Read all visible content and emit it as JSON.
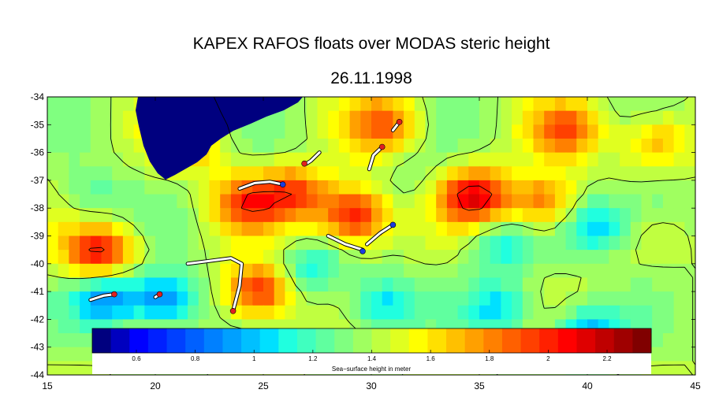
{
  "chart_data": {
    "type": "heatmap",
    "title": "KAPEX RAFOS floats over MODAS steric height",
    "subtitle": "26.11.1998",
    "xlim": [
      15,
      45
    ],
    "ylim": [
      -44,
      -34
    ],
    "x_ticks": [
      "15",
      "20",
      "25",
      "30",
      "35",
      "40",
      "45"
    ],
    "y_ticks": [
      "-34",
      "-35",
      "-36",
      "-37",
      "-38",
      "-39",
      "-40",
      "-41",
      "-42",
      "-43",
      "-44"
    ],
    "colorbar": {
      "label": "Sea−surface height in meter",
      "range": [
        0.45,
        2.35
      ],
      "ticks": [
        "0.6",
        "0.8",
        "1",
        "1.2",
        "1.4",
        "1.6",
        "1.8",
        "2",
        "2.2"
      ],
      "tick_values": [
        0.6,
        0.8,
        1.0,
        1.2,
        1.4,
        1.6,
        1.8,
        2.0,
        2.2
      ],
      "colors": [
        "#00007f",
        "#0000bf",
        "#0000ff",
        "#0020ff",
        "#0040ff",
        "#0060ff",
        "#0080ff",
        "#00a0ff",
        "#00c0ff",
        "#00e0ff",
        "#20ffdf",
        "#40ffbf",
        "#60ff9f",
        "#80ff80",
        "#a0ff60",
        "#c0ff40",
        "#e0ff20",
        "#ffff00",
        "#ffe000",
        "#ffc000",
        "#ffa000",
        "#ff8000",
        "#ff6000",
        "#ff4000",
        "#ff2000",
        "#ff0000",
        "#df0000",
        "#bf0000",
        "#9f0000",
        "#800000"
      ]
    },
    "land_color": "#00007f",
    "highs": [
      {
        "lon": 17.4,
        "lat": -39.6,
        "value": 2.05
      },
      {
        "lon": 24.2,
        "lat": -37.8,
        "value": 1.9
      },
      {
        "lon": 26.5,
        "lat": -37.4,
        "value": 1.9
      },
      {
        "lon": 29.2,
        "lat": -38.3,
        "value": 2.1
      },
      {
        "lon": 30.6,
        "lat": -35.0,
        "value": 1.85
      },
      {
        "lon": 34.8,
        "lat": -37.6,
        "value": 2.1
      },
      {
        "lon": 24.8,
        "lat": -41.0,
        "value": 2.05
      },
      {
        "lon": 38.0,
        "lat": -37.8,
        "value": 1.9
      },
      {
        "lon": 39.0,
        "lat": -35.2,
        "value": 1.85
      },
      {
        "lon": 43.2,
        "lat": -35.6,
        "value": 1.75
      },
      {
        "lon": 21.5,
        "lat": -35.6,
        "value": 1.75
      },
      {
        "lon": 29.8,
        "lat": -36.8,
        "value": 1.45
      }
    ],
    "lows": [
      {
        "lon": 20.5,
        "lat": -41.3,
        "value": 0.85
      },
      {
        "lon": 17.8,
        "lat": -41.2,
        "value": 0.9
      },
      {
        "lon": 17.0,
        "lat": -37.6,
        "value": 1.2
      },
      {
        "lon": 31.8,
        "lat": -36.9,
        "value": 1.3
      },
      {
        "lon": 36.0,
        "lat": -39.3,
        "value": 1.1
      },
      {
        "lon": 40.5,
        "lat": -38.6,
        "value": 1.0
      },
      {
        "lon": 43.2,
        "lat": -37.8,
        "value": 1.25
      },
      {
        "lon": 36.0,
        "lat": -41.6,
        "value": 1.05
      },
      {
        "lon": 27.2,
        "lat": -40.2,
        "value": 1.1
      },
      {
        "lon": 30.5,
        "lat": -41.5,
        "value": 1.0
      },
      {
        "lon": 40.0,
        "lat": -42.5,
        "value": 0.95
      },
      {
        "lon": 27.0,
        "lat": -36.4,
        "value": 1.35
      }
    ],
    "float_tracks": [
      {
        "points": [
          [
            17.0,
            -41.3
          ],
          [
            17.6,
            -41.15
          ],
          [
            18.1,
            -41.1
          ]
        ],
        "end": [
          18.1,
          -41.1
        ]
      },
      {
        "points": [
          [
            20.0,
            -41.2
          ],
          [
            20.2,
            -41.1
          ]
        ],
        "end": [
          20.2,
          -41.1
        ]
      },
      {
        "points": [
          [
            21.5,
            -40.0
          ],
          [
            22.5,
            -39.9
          ],
          [
            23.5,
            -39.8
          ],
          [
            24.0,
            -40.0
          ],
          [
            23.9,
            -40.8
          ],
          [
            23.6,
            -41.7
          ]
        ],
        "end": [
          23.6,
          -41.7
        ]
      },
      {
        "points": [
          [
            23.9,
            -37.3
          ],
          [
            24.6,
            -37.1
          ],
          [
            25.3,
            -37.05
          ],
          [
            25.9,
            -37.15
          ]
        ],
        "end": [
          25.9,
          -37.15
        ]
      },
      {
        "points": [
          [
            27.6,
            -36.0
          ],
          [
            27.2,
            -36.3
          ],
          [
            27.0,
            -36.4
          ]
        ],
        "end": [
          26.9,
          -36.4
        ]
      },
      {
        "points": [
          [
            28.0,
            -39.0
          ],
          [
            28.8,
            -39.3
          ],
          [
            29.6,
            -39.5
          ]
        ],
        "end": [
          29.6,
          -39.55
        ]
      },
      {
        "points": [
          [
            29.8,
            -39.3
          ],
          [
            30.4,
            -38.9
          ],
          [
            31.0,
            -38.6
          ]
        ],
        "end": [
          31.0,
          -38.6
        ]
      },
      {
        "points": [
          [
            29.9,
            -36.6
          ],
          [
            30.1,
            -36.1
          ],
          [
            30.5,
            -35.8
          ]
        ],
        "end": [
          30.5,
          -35.8
        ]
      },
      {
        "points": [
          [
            31.0,
            -35.2
          ],
          [
            31.3,
            -34.9
          ]
        ],
        "end": [
          31.3,
          -34.9
        ]
      }
    ],
    "end_colors": [
      "#e02020",
      "#e02020",
      "#e02020",
      "#1a3ce0",
      "#e02020",
      "#1a3ce0",
      "#1a3ce0",
      "#e02020",
      "#e02020"
    ],
    "grid": false
  }
}
